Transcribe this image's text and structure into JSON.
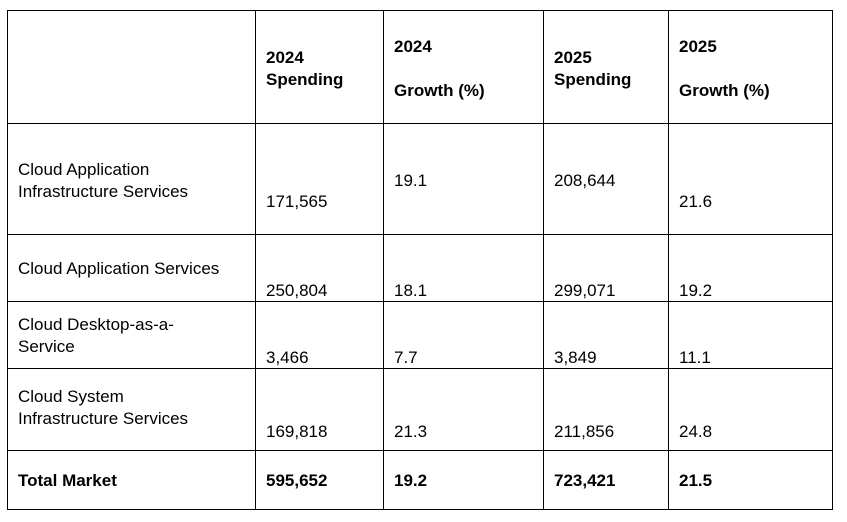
{
  "header": {
    "label": "",
    "spend_2024": "2024\nSpending",
    "growth_2024_year": "2024",
    "growth_2024_label": "Growth (%)",
    "spend_2025": "2025\nSpending",
    "growth_2025_year": "2025",
    "growth_2025_label": "Growth (%)"
  },
  "rows": [
    {
      "label": "Cloud Application\nInfrastructure Services",
      "spend_2024": "171,565",
      "growth_2024": "19.1",
      "spend_2025": "208,644",
      "growth_2025": "21.6"
    },
    {
      "label": "Cloud Application Services",
      "spend_2024": "250,804",
      "growth_2024": "18.1",
      "spend_2025": "299,071",
      "growth_2025": "19.2"
    },
    {
      "label": "Cloud Desktop-as-a-\nService",
      "spend_2024": "3,466",
      "growth_2024": "7.7",
      "spend_2025": "3,849",
      "growth_2025": "11.1"
    },
    {
      "label": "Cloud System\nInfrastructure Services",
      "spend_2024": "169,818",
      "growth_2024": "21.3",
      "spend_2025": "211,856",
      "growth_2025": "24.8"
    }
  ],
  "total": {
    "label": "Total Market",
    "spend_2024": "595,652",
    "growth_2024": "19.2",
    "spend_2025": "723,421",
    "growth_2025": "21.5"
  }
}
